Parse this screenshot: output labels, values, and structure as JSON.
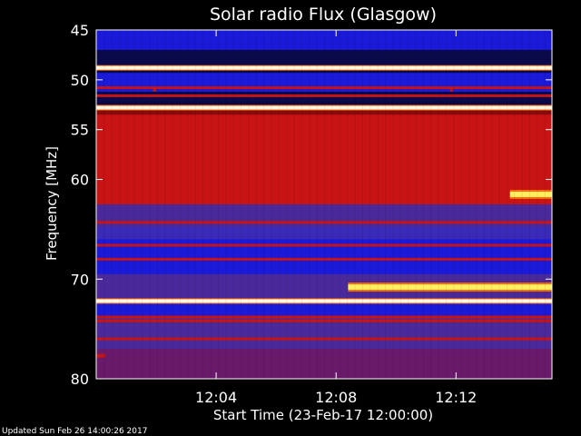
{
  "chart_data": {
    "type": "heatmap",
    "title": "Solar radio Flux (Glasgow)",
    "xlabel": "Start Time (23-Feb-17 12:00:00)",
    "ylabel": "Frequency [MHz]",
    "ylim": [
      45,
      80
    ],
    "y_ticks": [
      45,
      50,
      55,
      60,
      70,
      80
    ],
    "y_tick_labels": [
      "45",
      "50",
      "55",
      "60",
      "70",
      "80"
    ],
    "x_range_minutes": [
      0,
      15.2
    ],
    "x_ticks_minutes": [
      4,
      8,
      12
    ],
    "x_tick_labels": [
      "12:04",
      "12:08",
      "12:12"
    ],
    "background_bands": [
      {
        "from_mhz": 45.0,
        "to_mhz": 47.0,
        "intensity": "blue"
      },
      {
        "from_mhz": 47.0,
        "to_mhz": 48.6,
        "intensity": "dark-blue"
      },
      {
        "from_mhz": 48.6,
        "to_mhz": 49.3,
        "intensity": "dark-blue"
      },
      {
        "from_mhz": 49.3,
        "to_mhz": 51.2,
        "intensity": "blue"
      },
      {
        "from_mhz": 51.2,
        "to_mhz": 52.5,
        "intensity": "dark-blue"
      },
      {
        "from_mhz": 52.5,
        "to_mhz": 53.5,
        "intensity": "dark-red"
      },
      {
        "from_mhz": 53.5,
        "to_mhz": 57.0,
        "intensity": "red"
      },
      {
        "from_mhz": 57.0,
        "to_mhz": 62.5,
        "intensity": "red"
      },
      {
        "from_mhz": 62.5,
        "to_mhz": 64.8,
        "intensity": "purple"
      },
      {
        "from_mhz": 64.8,
        "to_mhz": 66.0,
        "intensity": "blue-purple"
      },
      {
        "from_mhz": 66.0,
        "to_mhz": 69.5,
        "intensity": "blue"
      },
      {
        "from_mhz": 69.5,
        "to_mhz": 72.2,
        "intensity": "purple"
      },
      {
        "from_mhz": 72.2,
        "to_mhz": 73.8,
        "intensity": "blue"
      },
      {
        "from_mhz": 73.8,
        "to_mhz": 77.0,
        "intensity": "purple"
      },
      {
        "from_mhz": 77.0,
        "to_mhz": 80.0,
        "intensity": "red-purple"
      }
    ],
    "emission_lines": [
      {
        "freq_mhz": 48.8,
        "intensity": "white"
      },
      {
        "freq_mhz": 50.8,
        "intensity": "red"
      },
      {
        "freq_mhz": 51.6,
        "intensity": "red"
      },
      {
        "freq_mhz": 52.8,
        "intensity": "white"
      },
      {
        "freq_mhz": 55.2,
        "intensity": "red"
      },
      {
        "freq_mhz": 64.3,
        "intensity": "red"
      },
      {
        "freq_mhz": 66.6,
        "intensity": "red"
      },
      {
        "freq_mhz": 68.0,
        "intensity": "red"
      },
      {
        "freq_mhz": 72.2,
        "intensity": "white"
      },
      {
        "freq_mhz": 73.8,
        "intensity": "red"
      },
      {
        "freq_mhz": 74.2,
        "intensity": "red"
      },
      {
        "freq_mhz": 76.0,
        "intensity": "red"
      }
    ],
    "bursts": [
      {
        "t_start_min": 8.4,
        "t_end_min": 15.2,
        "freq_mhz": 70.8,
        "intensity": "yellow"
      },
      {
        "t_start_min": 13.8,
        "t_end_min": 15.2,
        "freq_mhz": 61.5,
        "intensity": "yellow"
      },
      {
        "t_start_min": 9.8,
        "t_end_min": 10.1,
        "freq_mhz": 59.3,
        "intensity": "red"
      },
      {
        "t_start_min": 1.9,
        "t_end_min": 2.0,
        "freq_mhz": 51.0,
        "intensity": "red"
      },
      {
        "t_start_min": 11.8,
        "t_end_min": 11.9,
        "freq_mhz": 51.0,
        "intensity": "red"
      },
      {
        "t_start_min": 0.0,
        "t_end_min": 0.3,
        "freq_mhz": 77.7,
        "intensity": "red"
      }
    ]
  },
  "footer": {
    "updated_text": "Updated Sun Feb 26 14:00:26 2017"
  },
  "colors": {
    "background": "#000000",
    "text": "#ffffff",
    "dark_blue": "#0a0a4a",
    "blue": "#1a1ad8",
    "purple": "#4a2a9a",
    "red": "#c81414",
    "dark_red": "#8a0a0a",
    "white_line": "#fff8e8",
    "yellow": "#fff060"
  }
}
